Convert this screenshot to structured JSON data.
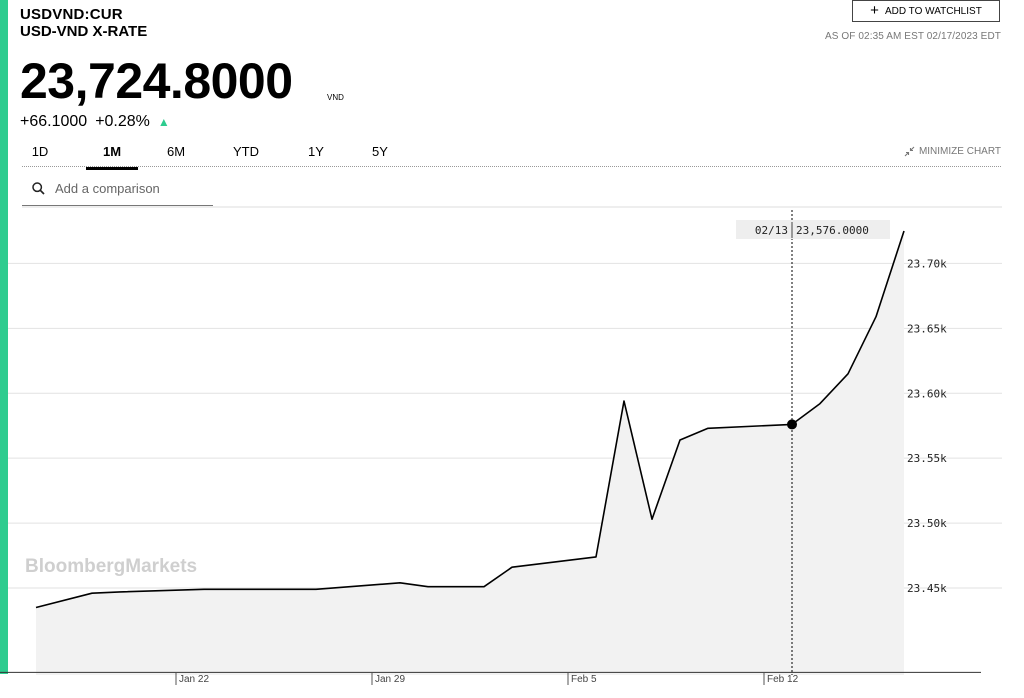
{
  "header": {
    "ticker": "USDVND:CUR",
    "name": "USD-VND X-RATE",
    "watchlist_label": "ADD TO WATCHLIST",
    "as_of": "AS OF 02:35 AM EST 02/17/2023 EDT"
  },
  "quote": {
    "price": "23,724.8000",
    "currency": "VND",
    "change": "+66.1000",
    "change_pct": "+0.28%"
  },
  "tabs": [
    {
      "label": "1D",
      "active": false
    },
    {
      "label": "1M",
      "active": true
    },
    {
      "label": "6M",
      "active": false
    },
    {
      "label": "YTD",
      "active": false
    },
    {
      "label": "1Y",
      "active": false
    },
    {
      "label": "5Y",
      "active": false
    }
  ],
  "minimize_label": "MINIMIZE CHART",
  "compare": {
    "placeholder": "Add a comparison"
  },
  "watermark": "BloombergMarkets",
  "tooltip": {
    "date": "02/13",
    "value": "23,576.0000"
  },
  "colors": {
    "accent": "#2ecc8f",
    "line": "#000000",
    "area": "#f2f2f2"
  },
  "chart_data": {
    "type": "area",
    "x": [
      "2023-01-17",
      "2023-01-19",
      "2023-01-20",
      "2023-01-23",
      "2023-01-24",
      "2023-01-25",
      "2023-01-26",
      "2023-01-27",
      "2023-01-30",
      "2023-01-31",
      "2023-02-01",
      "2023-02-02",
      "2023-02-03",
      "2023-02-06",
      "2023-02-07",
      "2023-02-08",
      "2023-02-09",
      "2023-02-10",
      "2023-02-13",
      "2023-02-14",
      "2023-02-15",
      "2023-02-16",
      "2023-02-17"
    ],
    "series": [
      {
        "values": [
          23435,
          23446,
          23447,
          23449,
          23449,
          23449,
          23449,
          23449,
          23454,
          23451,
          23451,
          23451,
          23466,
          23474,
          23594,
          23503,
          23564,
          23573,
          23576,
          23592,
          23615,
          23659,
          23725
        ]
      }
    ],
    "x_ticks": [
      "Jan 22",
      "Jan 29",
      "Feb 5",
      "Feb 12"
    ],
    "y_ticks": [
      "23.45k",
      "23.50k",
      "23.55k",
      "23.60k",
      "23.65k",
      "23.70k"
    ],
    "y_tick_values": [
      23450,
      23500,
      23550,
      23600,
      23650,
      23700
    ],
    "ylim": [
      23383,
      23745
    ],
    "xlim": [
      "2023-01-16",
      "2023-02-17"
    ],
    "highlight_x": "2023-02-13",
    "reference_value": 23385,
    "grid": true,
    "title": "",
    "xlabel": "",
    "ylabel": ""
  }
}
